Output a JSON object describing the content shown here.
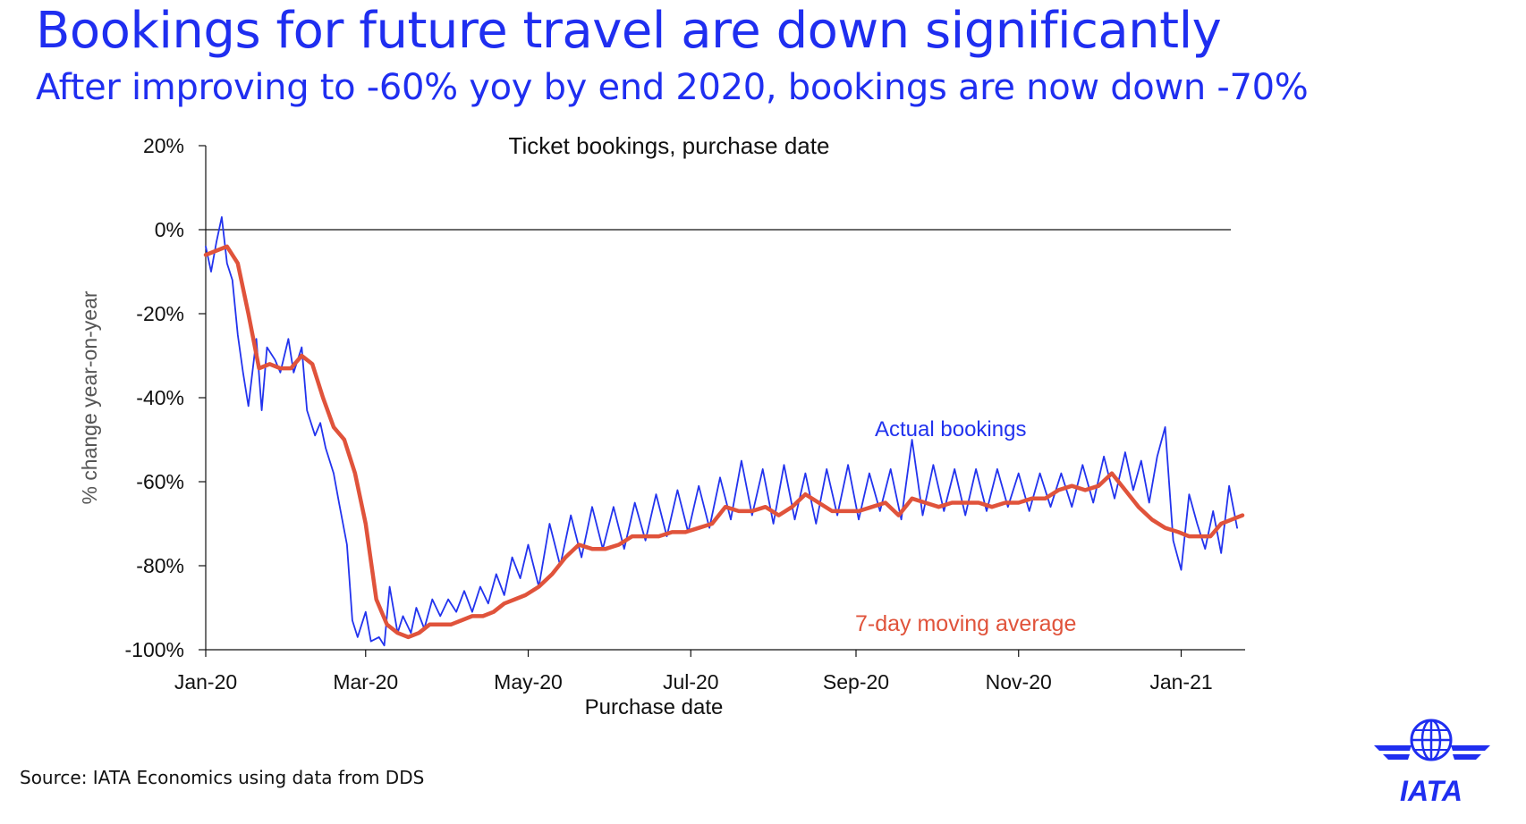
{
  "header": {
    "title": "Bookings for future travel are down significantly",
    "subtitle": "After improving to -60% yoy by end 2020, bookings are now down -70%"
  },
  "footer": {
    "source": "Source: IATA Economics using data from DDS"
  },
  "logo": {
    "text": "IATA",
    "icon": "globe-icon"
  },
  "colors": {
    "title": "#1f2ef0",
    "actual": "#2233ee",
    "average": "#e0533b",
    "axis": "#111111"
  },
  "chart_data": {
    "type": "line",
    "title": "Ticket bookings, purchase date",
    "xlabel": "Purchase date",
    "ylabel": "% change year-on-year",
    "ylim": [
      -100,
      20
    ],
    "xlim": [
      "2020-01-01",
      "2021-01-25"
    ],
    "y_ticks": [
      20,
      0,
      -20,
      -40,
      -60,
      -80,
      -100
    ],
    "y_tick_labels": [
      "20%",
      "0%",
      "-20%",
      "-40%",
      "-60%",
      "-80%",
      "-100%"
    ],
    "x_ticks": [
      "2020-01-01",
      "2020-03-01",
      "2020-05-01",
      "2020-07-01",
      "2020-09-01",
      "2020-11-01",
      "2021-01-01"
    ],
    "x_tick_labels": [
      "Jan-20",
      "Mar-20",
      "May-20",
      "Jul-20",
      "Sep-20",
      "Nov-20",
      "Jan-21"
    ],
    "zero_line": true,
    "grid": false,
    "annotations": [
      {
        "text": "Actual bookings",
        "series": "Actual bookings"
      },
      {
        "text": "7-day moving average",
        "series": "7-day moving average"
      }
    ],
    "series": [
      {
        "name": "Actual bookings",
        "color": "#2233ee",
        "x": [
          "2020-01-01",
          "2020-01-03",
          "2020-01-05",
          "2020-01-07",
          "2020-01-09",
          "2020-01-11",
          "2020-01-13",
          "2020-01-15",
          "2020-01-17",
          "2020-01-20",
          "2020-01-22",
          "2020-01-24",
          "2020-01-27",
          "2020-01-29",
          "2020-02-01",
          "2020-02-03",
          "2020-02-06",
          "2020-02-08",
          "2020-02-11",
          "2020-02-13",
          "2020-02-15",
          "2020-02-18",
          "2020-02-20",
          "2020-02-23",
          "2020-02-25",
          "2020-02-27",
          "2020-03-01",
          "2020-03-03",
          "2020-03-06",
          "2020-03-08",
          "2020-03-10",
          "2020-03-13",
          "2020-03-15",
          "2020-03-18",
          "2020-03-20",
          "2020-03-23",
          "2020-03-26",
          "2020-03-29",
          "2020-04-01",
          "2020-04-04",
          "2020-04-07",
          "2020-04-10",
          "2020-04-13",
          "2020-04-16",
          "2020-04-19",
          "2020-04-22",
          "2020-04-25",
          "2020-04-28",
          "2020-05-01",
          "2020-05-05",
          "2020-05-09",
          "2020-05-13",
          "2020-05-17",
          "2020-05-21",
          "2020-05-25",
          "2020-05-29",
          "2020-06-02",
          "2020-06-06",
          "2020-06-10",
          "2020-06-14",
          "2020-06-18",
          "2020-06-22",
          "2020-06-26",
          "2020-06-30",
          "2020-07-04",
          "2020-07-08",
          "2020-07-12",
          "2020-07-16",
          "2020-07-20",
          "2020-07-24",
          "2020-07-28",
          "2020-08-01",
          "2020-08-05",
          "2020-08-09",
          "2020-08-13",
          "2020-08-17",
          "2020-08-21",
          "2020-08-25",
          "2020-08-29",
          "2020-09-02",
          "2020-09-06",
          "2020-09-10",
          "2020-09-14",
          "2020-09-18",
          "2020-09-22",
          "2020-09-26",
          "2020-09-30",
          "2020-10-04",
          "2020-10-08",
          "2020-10-12",
          "2020-10-16",
          "2020-10-20",
          "2020-10-24",
          "2020-10-28",
          "2020-11-01",
          "2020-11-05",
          "2020-11-09",
          "2020-11-13",
          "2020-11-17",
          "2020-11-21",
          "2020-11-25",
          "2020-11-29",
          "2020-12-03",
          "2020-12-07",
          "2020-12-11",
          "2020-12-14",
          "2020-12-17",
          "2020-12-20",
          "2020-12-23",
          "2020-12-26",
          "2020-12-29",
          "2021-01-01",
          "2021-01-04",
          "2021-01-07",
          "2021-01-10",
          "2021-01-13",
          "2021-01-16",
          "2021-01-19",
          "2021-01-22"
        ],
        "y": [
          -4,
          -10,
          -3,
          3,
          -8,
          -12,
          -25,
          -34,
          -42,
          -26,
          -43,
          -28,
          -31,
          -34,
          -26,
          -34,
          -28,
          -43,
          -49,
          -46,
          -52,
          -58,
          -65,
          -75,
          -93,
          -97,
          -91,
          -98,
          -97,
          -99,
          -85,
          -96,
          -92,
          -96,
          -90,
          -95,
          -88,
          -92,
          -88,
          -91,
          -86,
          -91,
          -85,
          -89,
          -82,
          -87,
          -78,
          -83,
          -75,
          -85,
          -70,
          -80,
          -68,
          -78,
          -66,
          -76,
          -66,
          -76,
          -65,
          -74,
          -63,
          -73,
          -62,
          -72,
          -61,
          -71,
          -59,
          -69,
          -55,
          -68,
          -57,
          -70,
          -56,
          -69,
          -58,
          -70,
          -57,
          -68,
          -56,
          -69,
          -58,
          -67,
          -57,
          -69,
          -50,
          -68,
          -56,
          -67,
          -57,
          -68,
          -57,
          -67,
          -57,
          -66,
          -58,
          -67,
          -58,
          -66,
          -58,
          -66,
          -56,
          -65,
          -54,
          -64,
          -53,
          -62,
          -55,
          -65,
          -54,
          -47,
          -74,
          -81,
          -63,
          -70,
          -76,
          -67,
          -77,
          -61,
          -71
        ],
        "labels": [
          "Actual bookings"
        ]
      },
      {
        "name": "7-day moving average",
        "color": "#e0533b",
        "x": [
          "2020-01-01",
          "2020-01-05",
          "2020-01-09",
          "2020-01-13",
          "2020-01-17",
          "2020-01-21",
          "2020-01-25",
          "2020-01-29",
          "2020-02-02",
          "2020-02-06",
          "2020-02-10",
          "2020-02-14",
          "2020-02-18",
          "2020-02-22",
          "2020-02-26",
          "2020-03-01",
          "2020-03-05",
          "2020-03-09",
          "2020-03-13",
          "2020-03-17",
          "2020-03-21",
          "2020-03-25",
          "2020-03-29",
          "2020-04-02",
          "2020-04-06",
          "2020-04-10",
          "2020-04-14",
          "2020-04-18",
          "2020-04-22",
          "2020-04-26",
          "2020-04-30",
          "2020-05-05",
          "2020-05-10",
          "2020-05-15",
          "2020-05-20",
          "2020-05-25",
          "2020-05-30",
          "2020-06-04",
          "2020-06-09",
          "2020-06-14",
          "2020-06-19",
          "2020-06-24",
          "2020-06-29",
          "2020-07-04",
          "2020-07-09",
          "2020-07-14",
          "2020-07-19",
          "2020-07-24",
          "2020-07-29",
          "2020-08-03",
          "2020-08-08",
          "2020-08-13",
          "2020-08-18",
          "2020-08-23",
          "2020-08-28",
          "2020-09-02",
          "2020-09-07",
          "2020-09-12",
          "2020-09-17",
          "2020-09-22",
          "2020-09-27",
          "2020-10-02",
          "2020-10-07",
          "2020-10-12",
          "2020-10-17",
          "2020-10-22",
          "2020-10-27",
          "2020-11-01",
          "2020-11-06",
          "2020-11-11",
          "2020-11-16",
          "2020-11-21",
          "2020-11-26",
          "2020-12-01",
          "2020-12-06",
          "2020-12-11",
          "2020-12-16",
          "2020-12-21",
          "2020-12-26",
          "2020-12-31",
          "2021-01-04",
          "2021-01-08",
          "2021-01-12",
          "2021-01-16",
          "2021-01-20",
          "2021-01-24"
        ],
        "y": [
          -6,
          -5,
          -4,
          -8,
          -20,
          -33,
          -32,
          -33,
          -33,
          -30,
          -32,
          -40,
          -47,
          -50,
          -58,
          -70,
          -88,
          -94,
          -96,
          -97,
          -96,
          -94,
          -94,
          -94,
          -93,
          -92,
          -92,
          -91,
          -89,
          -88,
          -87,
          -85,
          -82,
          -78,
          -75,
          -76,
          -76,
          -75,
          -73,
          -73,
          -73,
          -72,
          -72,
          -71,
          -70,
          -66,
          -67,
          -67,
          -66,
          -68,
          -66,
          -63,
          -65,
          -67,
          -67,
          -67,
          -66,
          -65,
          -68,
          -64,
          -65,
          -66,
          -65,
          -65,
          -65,
          -66,
          -65,
          -65,
          -64,
          -64,
          -62,
          -61,
          -62,
          -61,
          -58,
          -62,
          -66,
          -69,
          -71,
          -72,
          -73,
          -73,
          -73,
          -70,
          -69,
          -68
        ],
        "labels": [
          "7-day moving average"
        ]
      }
    ]
  }
}
